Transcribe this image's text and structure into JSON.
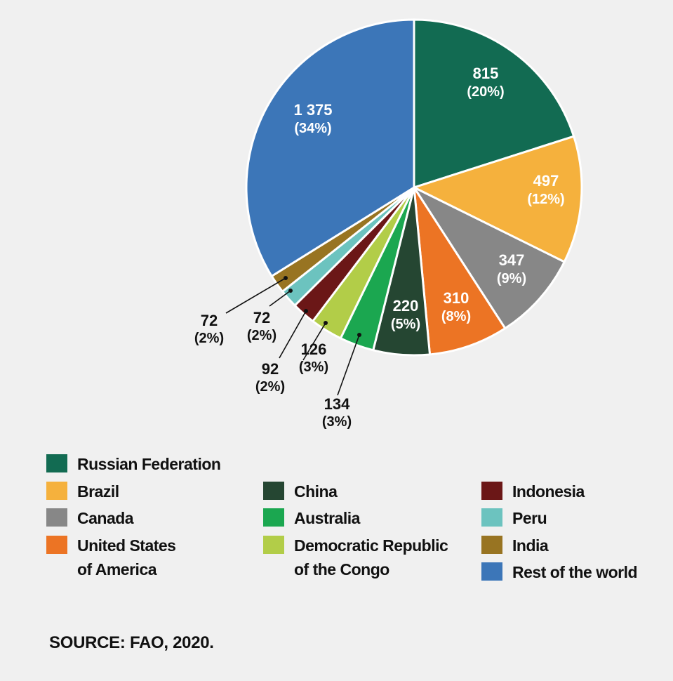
{
  "chart_data": {
    "type": "pie",
    "title": "",
    "slices": [
      {
        "name": "Russian Federation",
        "value": 815,
        "value_label": "815",
        "percent_label": "(20%)",
        "color": "#126b52",
        "label_color": "#ffffff",
        "callout": false
      },
      {
        "name": "Brazil",
        "value": 497,
        "value_label": "497",
        "percent_label": "(12%)",
        "color": "#f5b13d",
        "label_color": "#ffffff",
        "callout": false
      },
      {
        "name": "Canada",
        "value": 347,
        "value_label": "347",
        "percent_label": "(9%)",
        "color": "#878787",
        "label_color": "#ffffff",
        "callout": false
      },
      {
        "name": "United States of America",
        "value": 310,
        "value_label": "310",
        "percent_label": "(8%)",
        "color": "#ec7424",
        "label_color": "#ffffff",
        "callout": false
      },
      {
        "name": "China",
        "value": 220,
        "value_label": "220",
        "percent_label": "(5%)",
        "color": "#254632",
        "label_color": "#ffffff",
        "callout": false
      },
      {
        "name": "Australia",
        "value": 134,
        "value_label": "134",
        "percent_label": "(3%)",
        "color": "#1ba750",
        "label_color": "#111111",
        "callout": true
      },
      {
        "name": "Democratic Republic of the Congo",
        "value": 126,
        "value_label": "126",
        "percent_label": "(3%)",
        "color": "#b2cd48",
        "label_color": "#111111",
        "callout": true
      },
      {
        "name": "Indonesia",
        "value": 92,
        "value_label": "92",
        "percent_label": "(2%)",
        "color": "#6b1717",
        "label_color": "#111111",
        "callout": true
      },
      {
        "name": "Peru",
        "value": 72,
        "value_label": "72",
        "percent_label": "(2%)",
        "color": "#6cc3bf",
        "label_color": "#111111",
        "callout": true
      },
      {
        "name": "India",
        "value": 72,
        "value_label": "72",
        "percent_label": "(2%)",
        "color": "#987422",
        "label_color": "#111111",
        "callout": true
      },
      {
        "name": "Rest of the world",
        "value": 1375,
        "value_label": "1 375",
        "percent_label": "(34%)",
        "color": "#3c76b8",
        "label_color": "#ffffff",
        "callout": false
      }
    ],
    "legend": {
      "placement": "bottom",
      "columns": [
        [
          {
            "label": "Russian Federation",
            "color": "#126b52"
          },
          {
            "label": "Brazil",
            "color": "#f5b13d"
          },
          {
            "label": "Canada",
            "color": "#878787"
          },
          {
            "label": "United States\nof America",
            "color": "#ec7424"
          }
        ],
        [
          {
            "label": "China",
            "color": "#254632"
          },
          {
            "label": "Australia",
            "color": "#1ba750"
          },
          {
            "label": "Democratic Republic\nof the Congo",
            "color": "#b2cd48"
          }
        ],
        [
          {
            "label": "Indonesia",
            "color": "#6b1717"
          },
          {
            "label": "Peru",
            "color": "#6cc3bf"
          },
          {
            "label": "India",
            "color": "#987422"
          },
          {
            "label": "Rest of the world",
            "color": "#3c76b8"
          }
        ]
      ]
    }
  },
  "source": "SOURCE: FAO, 2020."
}
